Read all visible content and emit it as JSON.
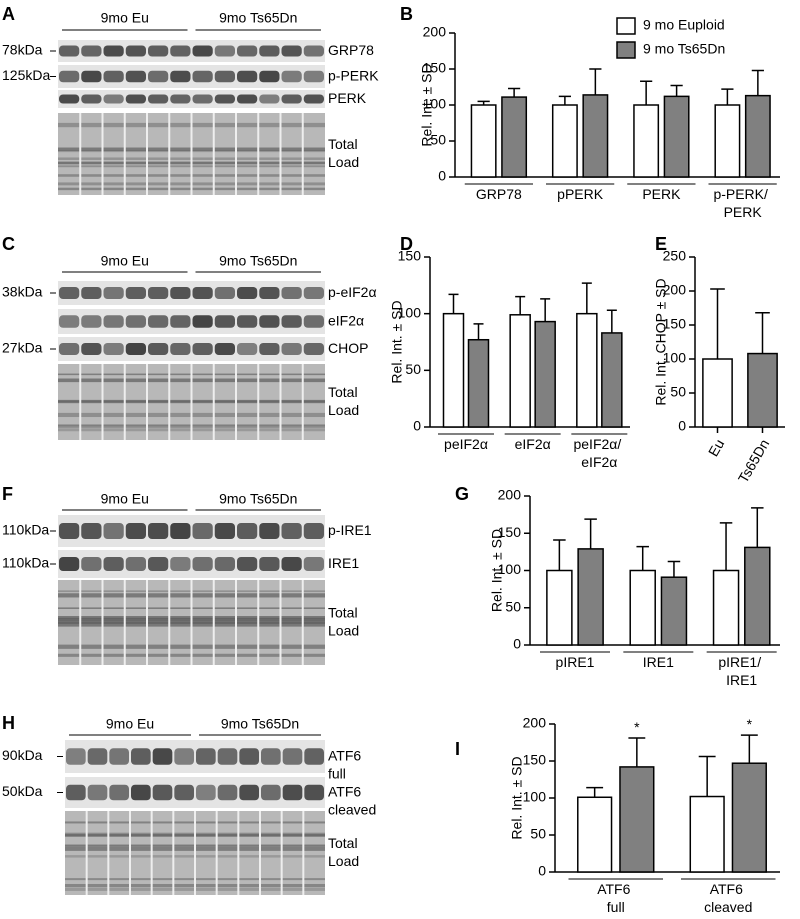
{
  "chart_data": [
    {
      "type": "bar",
      "panel": "B",
      "ylabel": "Rel. Int. ± SD",
      "categories": [
        "GRP78",
        "pPERK",
        "PERK",
        "p-PERK/ PERK"
      ],
      "series": [
        {
          "name": "9 mo Euploid",
          "color": "#ffffff",
          "values": [
            100,
            100,
            100,
            100
          ],
          "errors": [
            5,
            12,
            33,
            22
          ]
        },
        {
          "name": "9 mo Ts65Dn",
          "color": "#808080",
          "values": [
            111,
            114,
            112,
            113
          ],
          "errors": [
            12,
            36,
            15,
            35
          ]
        }
      ],
      "ylim": [
        0,
        200
      ],
      "yticks": [
        0,
        50,
        100,
        150,
        200
      ]
    },
    {
      "type": "bar",
      "panel": "D",
      "ylabel": "Rel. Int. ± SD",
      "categories": [
        "peIF2α",
        "eIF2α",
        "peIF2α/ eIF2α"
      ],
      "series": [
        {
          "color": "#ffffff",
          "values": [
            100,
            99,
            100
          ],
          "errors": [
            17,
            16,
            27
          ]
        },
        {
          "color": "#808080",
          "values": [
            77,
            93,
            83
          ],
          "errors": [
            14,
            20,
            20
          ]
        }
      ],
      "ylim": [
        0,
        150
      ],
      "yticks": [
        0,
        50,
        100,
        150
      ]
    },
    {
      "type": "bar",
      "panel": "E",
      "ylabel": "Rel. Int. CHOP ± SD",
      "categories": [
        "Eu",
        "Ts65Dn"
      ],
      "values": [
        100,
        108
      ],
      "errors": [
        103,
        60
      ],
      "colors": [
        "#ffffff",
        "#808080"
      ],
      "ylim": [
        0,
        250
      ],
      "yticks": [
        0,
        50,
        100,
        150,
        200,
        250
      ]
    },
    {
      "type": "bar",
      "panel": "G",
      "ylabel": "Rel. Int. ± SD",
      "categories": [
        "pIRE1",
        "IRE1",
        "pIRE1/ IRE1"
      ],
      "series": [
        {
          "color": "#ffffff",
          "values": [
            100,
            100,
            100
          ],
          "errors": [
            41,
            32,
            64
          ]
        },
        {
          "color": "#808080",
          "values": [
            129,
            91,
            131
          ],
          "errors": [
            40,
            21,
            53
          ]
        }
      ],
      "ylim": [
        0,
        200
      ],
      "yticks": [
        0,
        50,
        100,
        150,
        200
      ]
    },
    {
      "type": "bar",
      "panel": "I",
      "ylabel": "Rel. Int. ± SD",
      "categories": [
        "ATF6 full",
        "ATF6 cleaved"
      ],
      "series": [
        {
          "color": "#ffffff",
          "values": [
            101,
            102
          ],
          "errors": [
            13,
            54
          ]
        },
        {
          "color": "#808080",
          "values": [
            142,
            147
          ],
          "errors": [
            39,
            38
          ],
          "annotations": [
            "*",
            "*"
          ]
        }
      ],
      "ylim": [
        0,
        200
      ],
      "yticks": [
        0,
        50,
        100,
        150,
        200
      ]
    }
  ],
  "blots": [
    {
      "panel": "A",
      "groups": [
        "9mo Eu",
        "9mo Ts65Dn"
      ],
      "markers": [
        "78kDa",
        "125kDa"
      ],
      "bands": [
        "GRP78",
        "p-PERK",
        "PERK",
        "Total Load"
      ]
    },
    {
      "panel": "C",
      "groups": [
        "9mo Eu",
        "9mo Ts65Dn"
      ],
      "markers": [
        "38kDa",
        "27kDa"
      ],
      "bands": [
        "p-eIF2α",
        "eIF2α",
        "CHOP",
        "Total Load"
      ]
    },
    {
      "panel": "F",
      "groups": [
        "9mo Eu",
        "9mo Ts65Dn"
      ],
      "markers": [
        "110kDa",
        "110kDa"
      ],
      "bands": [
        "p-IRE1",
        "IRE1",
        "Total Load"
      ]
    },
    {
      "panel": "H",
      "groups": [
        "9mo Eu",
        "9mo Ts65Dn"
      ],
      "markers": [
        "90kDa",
        "50kDa"
      ],
      "bands": [
        "ATF6 full",
        "ATF6 cleaved",
        "Total Load"
      ]
    }
  ]
}
